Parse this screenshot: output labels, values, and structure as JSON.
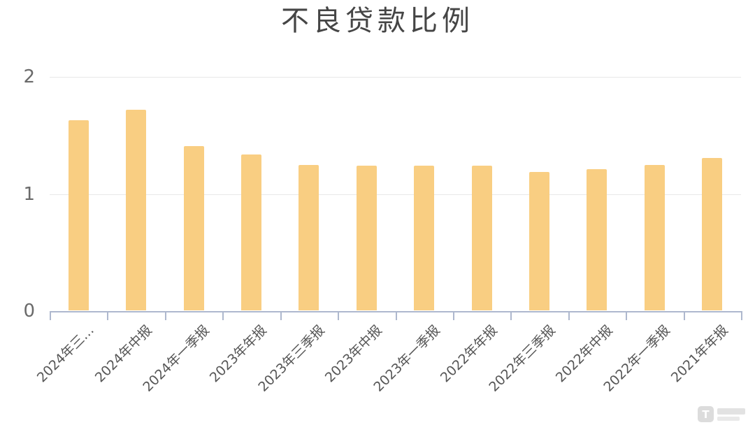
{
  "title": "不良贷款比例",
  "chart_data": {
    "type": "bar",
    "title": "不良贷款比例",
    "categories": [
      "2024年三…",
      "2024年中报",
      "2024年一季报",
      "2023年年报",
      "2023年三季报",
      "2023年中报",
      "2023年一季报",
      "2022年年报",
      "2022年三季报",
      "2022年中报",
      "2022年一季报",
      "2021年年报"
    ],
    "values": [
      1.63,
      1.72,
      1.41,
      1.34,
      1.25,
      1.24,
      1.24,
      1.24,
      1.19,
      1.21,
      1.25,
      1.31
    ],
    "xlabel": "",
    "ylabel": "",
    "ylim": [
      0,
      2
    ],
    "yticks": [
      0,
      1,
      2
    ],
    "grid": true,
    "legend": false,
    "x_label_rotation_deg": 45,
    "bar_color": "#F9CE82",
    "axis_color": "#AEB8CE",
    "gridline_color": "#E8E8E8",
    "title_color": "#454545",
    "tick_label_color": "#6A6A6A"
  },
  "watermark": {
    "logo_letter": "T"
  }
}
